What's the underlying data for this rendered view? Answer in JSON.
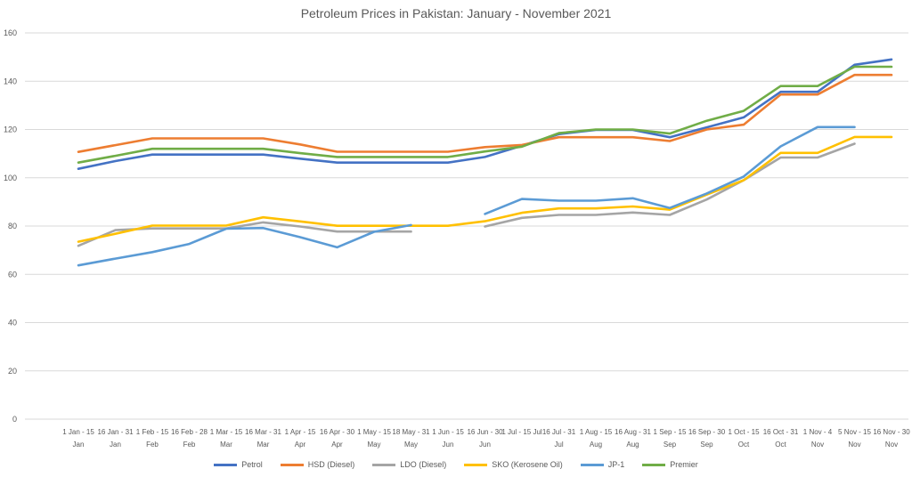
{
  "chart_data": {
    "type": "line",
    "title": "Petroleum Prices in Pakistan: January - November 2021",
    "xlabel": "",
    "ylabel": "",
    "ylim": [
      0,
      160
    ],
    "yticks": [
      0,
      20,
      40,
      60,
      80,
      100,
      120,
      140,
      160
    ],
    "grid": true,
    "legend_position": "bottom",
    "categories": [
      [
        "1 Jan - 15",
        "Jan"
      ],
      [
        "16 Jan - 31",
        "Jan"
      ],
      [
        "1 Feb - 15",
        "Feb"
      ],
      [
        "16 Feb - 28",
        "Feb"
      ],
      [
        "1 Mar - 15",
        "Mar"
      ],
      [
        "16 Mar - 31",
        "Mar"
      ],
      [
        "1 Apr - 15",
        "Apr"
      ],
      [
        "16 Apr - 30",
        "Apr"
      ],
      [
        "1 May - 15",
        "May"
      ],
      [
        "18 May - 31",
        "May"
      ],
      [
        "1 Jun - 15",
        "Jun"
      ],
      [
        "16 Jun - 30",
        "Jun"
      ],
      [
        "1 Jul - 15 Jul",
        ""
      ],
      [
        "16 Jul - 31",
        "Jul"
      ],
      [
        "1 Aug - 15",
        "Aug"
      ],
      [
        "16 Aug - 31",
        "Aug"
      ],
      [
        "1 Sep - 15",
        "Sep"
      ],
      [
        "16 Sep - 30",
        "Sep"
      ],
      [
        "1 Oct - 15",
        "Oct"
      ],
      [
        "16 Oct - 31",
        "Oct"
      ],
      [
        "1 Nov - 4",
        "Nov"
      ],
      [
        "5 Nov - 15",
        "Nov"
      ],
      [
        "16 Nov - 30",
        "Nov"
      ]
    ],
    "series": [
      {
        "name": "Petrol",
        "color": "#4472c4",
        "values": [
          103.7,
          106.9,
          109.6,
          109.6,
          109.6,
          109.6,
          107.9,
          106.3,
          106.3,
          106.3,
          106.3,
          108.6,
          113.3,
          118.1,
          119.8,
          119.8,
          116.8,
          120.9,
          125.0,
          135.6,
          135.6,
          146.8,
          149.0
        ]
      },
      {
        "name": "HSD (Diesel)",
        "color": "#ed7d31",
        "values": [
          110.7,
          113.5,
          116.3,
          116.3,
          116.3,
          116.3,
          113.8,
          110.8,
          110.8,
          110.8,
          110.8,
          112.7,
          113.6,
          116.8,
          116.8,
          116.8,
          115.2,
          120.0,
          122.0,
          134.5,
          134.5,
          142.6,
          142.6
        ]
      },
      {
        "name": "LDO (Diesel)",
        "color": "#a5a5a5",
        "values": [
          71.8,
          78.3,
          79.0,
          79.0,
          79.0,
          81.5,
          79.8,
          77.7,
          77.7,
          77.7,
          null,
          79.8,
          83.4,
          84.6,
          84.6,
          85.6,
          84.6,
          91.0,
          99.0,
          108.4,
          108.4,
          114.1,
          null
        ]
      },
      {
        "name": "SKO (Kerosene Oil)",
        "color": "#ffc000",
        "values": [
          73.5,
          76.8,
          80.2,
          80.2,
          80.2,
          83.6,
          81.9,
          80.1,
          80.1,
          80.1,
          80.1,
          82.0,
          85.5,
          87.3,
          87.3,
          88.1,
          86.8,
          93.0,
          99.0,
          110.3,
          110.3,
          116.9,
          116.9
        ]
      },
      {
        "name": "JP-1",
        "color": "#5b9bd5",
        "values": [
          63.7,
          66.5,
          69.2,
          72.6,
          78.9,
          79.2,
          75.4,
          71.2,
          77.6,
          80.4,
          null,
          85.0,
          91.2,
          90.5,
          90.5,
          91.5,
          87.5,
          93.5,
          100.5,
          113.0,
          121.0,
          121.0,
          null
        ]
      },
      {
        "name": "Premier",
        "color": "#70ad47",
        "values": [
          106.3,
          109.1,
          112.0,
          112.0,
          112.0,
          112.0,
          110.2,
          108.6,
          108.6,
          108.6,
          108.6,
          110.9,
          112.9,
          118.5,
          120.0,
          120.0,
          118.3,
          123.6,
          127.7,
          138.0,
          138.0,
          146.0,
          146.0
        ]
      }
    ]
  }
}
